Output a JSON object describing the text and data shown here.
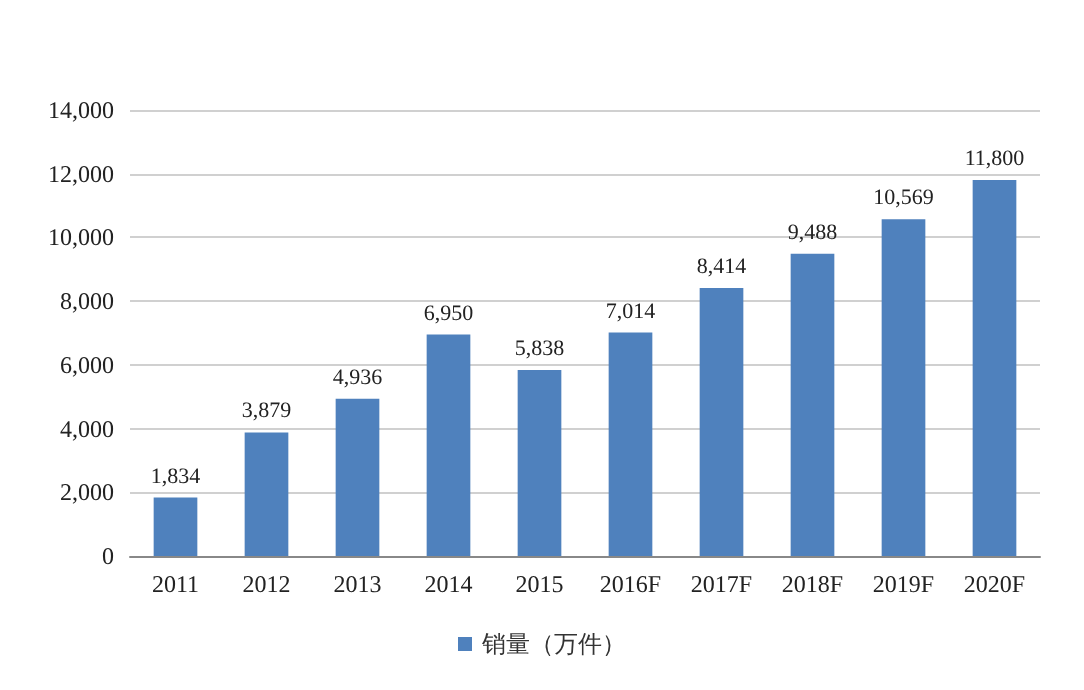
{
  "chart_data": {
    "type": "bar",
    "categories": [
      "2011",
      "2012",
      "2013",
      "2014",
      "2015",
      "2016F",
      "2017F",
      "2018F",
      "2019F",
      "2020F"
    ],
    "series": [
      {
        "name": "销量（万件）",
        "color": "#4f81bd",
        "values": [
          1834,
          3879,
          4936,
          6950,
          5838,
          7014,
          8414,
          9488,
          10569,
          11800
        ],
        "value_labels": [
          "1,834",
          "3,879",
          "4,936",
          "6,950",
          "5,838",
          "7,014",
          "8,414",
          "9,488",
          "10,569",
          "11,800"
        ]
      }
    ],
    "ylim": [
      0,
      14000
    ],
    "yticks": [
      0,
      {
        "value": 2000,
        "label": "2,000"
      },
      {
        "value": 4000,
        "label": "4,000"
      },
      {
        "value": 6000,
        "label": "6,000"
      },
      {
        "value": 8000,
        "label": "8,000"
      },
      {
        "value": 10000,
        "label": "10,000"
      },
      {
        "value": 12000,
        "label": "12,000"
      },
      {
        "value": 14000,
        "label": "14,000"
      }
    ],
    "grid": "y",
    "legend": "bottom"
  }
}
